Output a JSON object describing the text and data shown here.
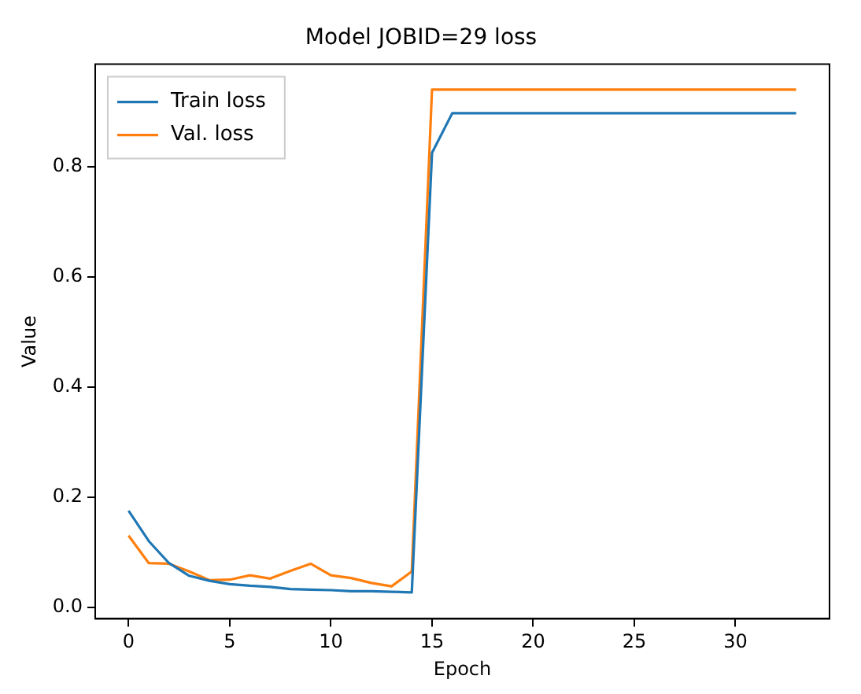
{
  "chart_data": {
    "type": "line",
    "title": "Model JOBID=29 loss",
    "xlabel": "Epoch",
    "ylabel": "Value",
    "x": [
      0,
      1,
      2,
      3,
      4,
      5,
      6,
      7,
      8,
      9,
      10,
      11,
      12,
      13,
      14,
      15,
      16,
      17,
      18,
      19,
      20,
      21,
      22,
      23,
      24,
      25,
      26,
      27,
      28,
      29,
      30,
      31,
      32,
      33
    ],
    "series": [
      {
        "name": "Train loss",
        "color": "#1f77b4",
        "values": [
          0.175,
          0.12,
          0.08,
          0.057,
          0.048,
          0.042,
          0.039,
          0.037,
          0.033,
          0.032,
          0.031,
          0.029,
          0.029,
          0.028,
          0.027,
          0.825,
          0.897,
          0.897,
          0.897,
          0.897,
          0.897,
          0.897,
          0.897,
          0.897,
          0.897,
          0.897,
          0.897,
          0.897,
          0.897,
          0.897,
          0.897,
          0.897,
          0.897,
          0.897
        ]
      },
      {
        "name": "Val. loss",
        "color": "#ff7f0e",
        "values": [
          0.13,
          0.08,
          0.079,
          0.065,
          0.049,
          0.05,
          0.058,
          0.052,
          0.066,
          0.079,
          0.058,
          0.053,
          0.044,
          0.038,
          0.065,
          0.94,
          0.94,
          0.94,
          0.94,
          0.94,
          0.94,
          0.94,
          0.94,
          0.94,
          0.94,
          0.94,
          0.94,
          0.94,
          0.94,
          0.94,
          0.94,
          0.94,
          0.94,
          0.94
        ]
      }
    ],
    "xlim": [
      -1.65,
      34.65
    ],
    "xticks": [
      0,
      5,
      10,
      15,
      20,
      25,
      30
    ],
    "ylim": [
      -0.021,
      0.986
    ],
    "yticks": [
      {
        "value": 0,
        "label": "0.0"
      },
      {
        "value": 0.2,
        "label": "0.2"
      },
      {
        "value": 0.4,
        "label": "0.4"
      },
      {
        "value": 0.6,
        "label": "0.6"
      },
      {
        "value": 0.8,
        "label": "0.8"
      }
    ],
    "grid": false,
    "legend": "top left",
    "marker": "none",
    "line_style": "solid"
  }
}
